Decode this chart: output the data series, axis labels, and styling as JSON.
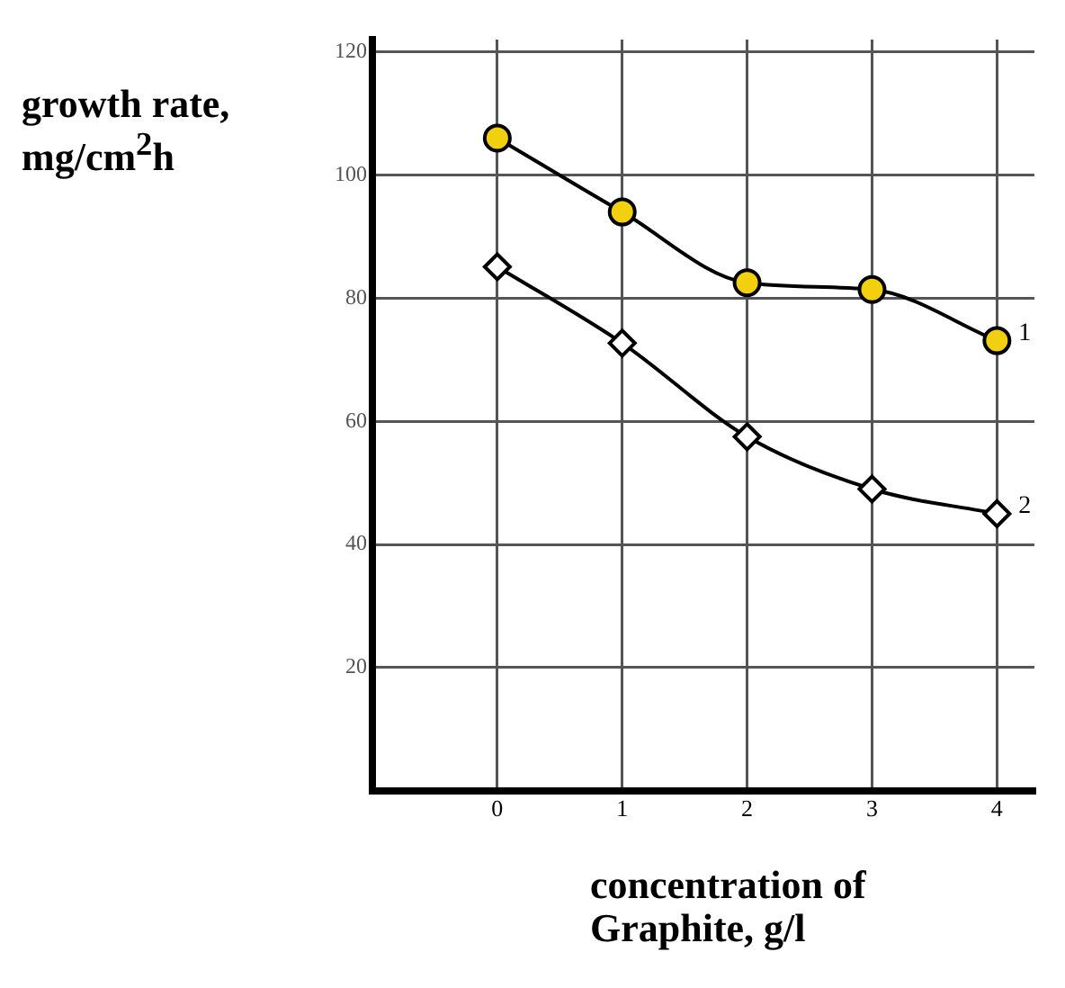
{
  "chart_data": {
    "type": "line",
    "ylabel": "growth rate, mg/cm$^{2}$h",
    "xlabel": "concentration of Graphite, g/l",
    "x": [
      0,
      1,
      2,
      3,
      4
    ],
    "series": [
      {
        "name": "1",
        "color": "#f2d00f",
        "values": [
          106,
          94,
          82.5,
          81.4,
          73.1
        ],
        "marker": "circle"
      },
      {
        "name": "2",
        "color": "#ffffff",
        "values": [
          85.1,
          72.7,
          57.5,
          49,
          45
        ],
        "marker": "diamond"
      }
    ],
    "xlim": [
      -1,
      4.3
    ],
    "xticks": [
      0,
      1,
      2,
      3,
      4
    ],
    "ylim": [
      0,
      122
    ],
    "yticks": [
      20,
      40,
      60,
      80,
      100,
      120
    ],
    "grid": true,
    "legend": false
  }
}
